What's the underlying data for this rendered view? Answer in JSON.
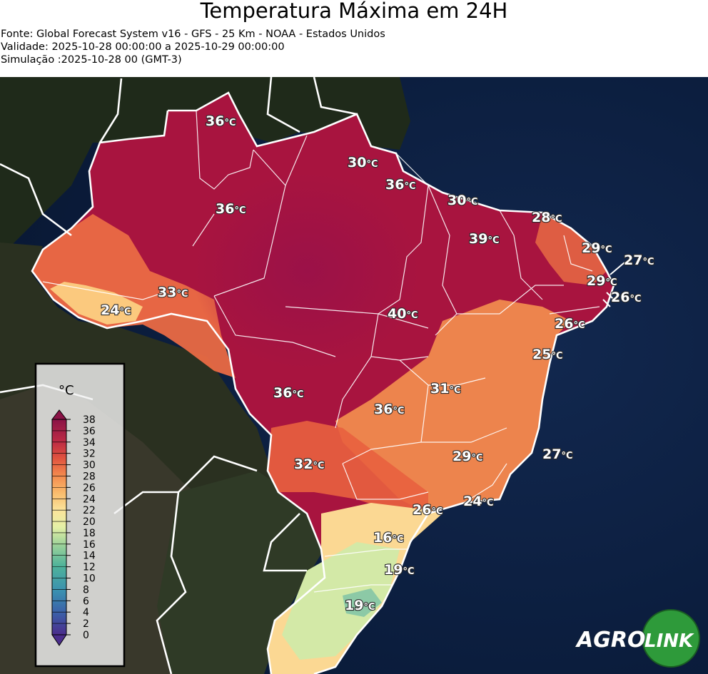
{
  "header": {
    "title": "Temperatura Máxima em 24H",
    "source": "Fonte: Global Forecast System v16 - GFS - 25 Km - NOAA - Estados Unidos",
    "validity": "Validade: 2025-10-28 00:00:00 a 2025-10-29 00:00:00",
    "simulation": "Simulação :2025-10-28 00 (GMT-3)"
  },
  "legend": {
    "unit": "°C",
    "ticks": [
      "0",
      "2",
      "4",
      "6",
      "8",
      "10",
      "12",
      "14",
      "16",
      "18",
      "20",
      "22",
      "24",
      "26",
      "28",
      "30",
      "32",
      "34",
      "36",
      "38"
    ]
  },
  "labels": [
    {
      "value": "36",
      "unit": "°C"
    },
    {
      "value": "30",
      "unit": "°C"
    },
    {
      "value": "36",
      "unit": "°C"
    },
    {
      "value": "36",
      "unit": "°C"
    },
    {
      "value": "30",
      "unit": "°C"
    },
    {
      "value": "28",
      "unit": "°C"
    },
    {
      "value": "39",
      "unit": "°C"
    },
    {
      "value": "29",
      "unit": "°C"
    },
    {
      "value": "27",
      "unit": "°C"
    },
    {
      "value": "29",
      "unit": "°C"
    },
    {
      "value": "26",
      "unit": "°C"
    },
    {
      "value": "33",
      "unit": "°C"
    },
    {
      "value": "24",
      "unit": "°C"
    },
    {
      "value": "40",
      "unit": "°C"
    },
    {
      "value": "26",
      "unit": "°C"
    },
    {
      "value": "25",
      "unit": "°C"
    },
    {
      "value": "31",
      "unit": "°C"
    },
    {
      "value": "36",
      "unit": "°C"
    },
    {
      "value": "36",
      "unit": "°C"
    },
    {
      "value": "29",
      "unit": "°C"
    },
    {
      "value": "27",
      "unit": "°C"
    },
    {
      "value": "32",
      "unit": "°C"
    },
    {
      "value": "24",
      "unit": "°C"
    },
    {
      "value": "26",
      "unit": "°C"
    },
    {
      "value": "16",
      "unit": "°C"
    },
    {
      "value": "19",
      "unit": "°C"
    },
    {
      "value": "19",
      "unit": "°C"
    }
  ],
  "logo": {
    "part1": "AGRO",
    "part2": "LINK"
  }
}
